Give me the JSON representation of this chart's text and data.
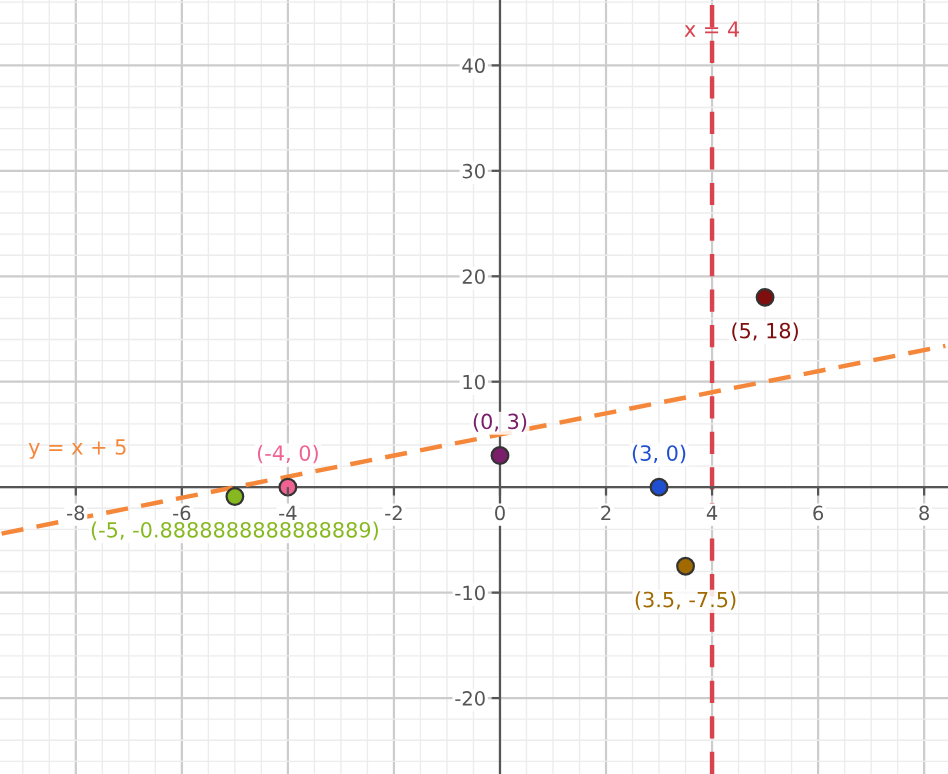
{
  "chart_data": {
    "type": "scatter",
    "xlim": [
      -9.43,
      8.45
    ],
    "ylim": [
      -27.2,
      46.2
    ],
    "xticks": [
      -8,
      -6,
      -4,
      -2,
      0,
      2,
      4,
      6,
      8
    ],
    "yticks": [
      -20,
      -10,
      10,
      20,
      30,
      40
    ],
    "grid": true,
    "marker": "circle",
    "series": [
      {
        "type": "line",
        "name": "y = x + 5",
        "color": "#f4873a",
        "line_style": "dashed",
        "marker": "none",
        "x": [
          -9.4,
          8.4
        ],
        "values": [
          -4.4,
          13.4
        ]
      },
      {
        "color": "#f06292",
        "x": [
          -4
        ],
        "values": [
          0
        ]
      },
      {
        "color": "#86b81f",
        "x": [
          -5
        ],
        "values": [
          -0.888888888888889
        ]
      },
      {
        "color": "#7b1f6b",
        "x": [
          0
        ],
        "values": [
          3
        ]
      },
      {
        "color": "#1f4fd0",
        "x": [
          3
        ],
        "values": [
          0
        ]
      },
      {
        "color": "#a06a00",
        "x": [
          3.5
        ],
        "values": [
          -7.5
        ]
      },
      {
        "color": "#7f0f0f",
        "x": [
          5
        ],
        "values": [
          18
        ]
      }
    ],
    "ref_lines": [
      {
        "axis": "x",
        "value": 4,
        "label": "x = 4",
        "color": "#d9434f",
        "line_style": "dashed"
      }
    ],
    "annotations": [
      {
        "text": "(-4, 0)",
        "x": -4,
        "y": 0
      },
      {
        "text": "(-5, -0.8888888888888889)",
        "x": -5,
        "y": -0.888888888888889
      },
      {
        "text": "(0, 3)",
        "x": 0,
        "y": 3
      },
      {
        "text": "(3, 0)",
        "x": 3,
        "y": 0
      },
      {
        "text": "(3.5, -7.5)",
        "x": 3.5,
        "y": -7.5
      },
      {
        "text": "(5, 18)",
        "x": 5,
        "y": 18
      }
    ]
  }
}
